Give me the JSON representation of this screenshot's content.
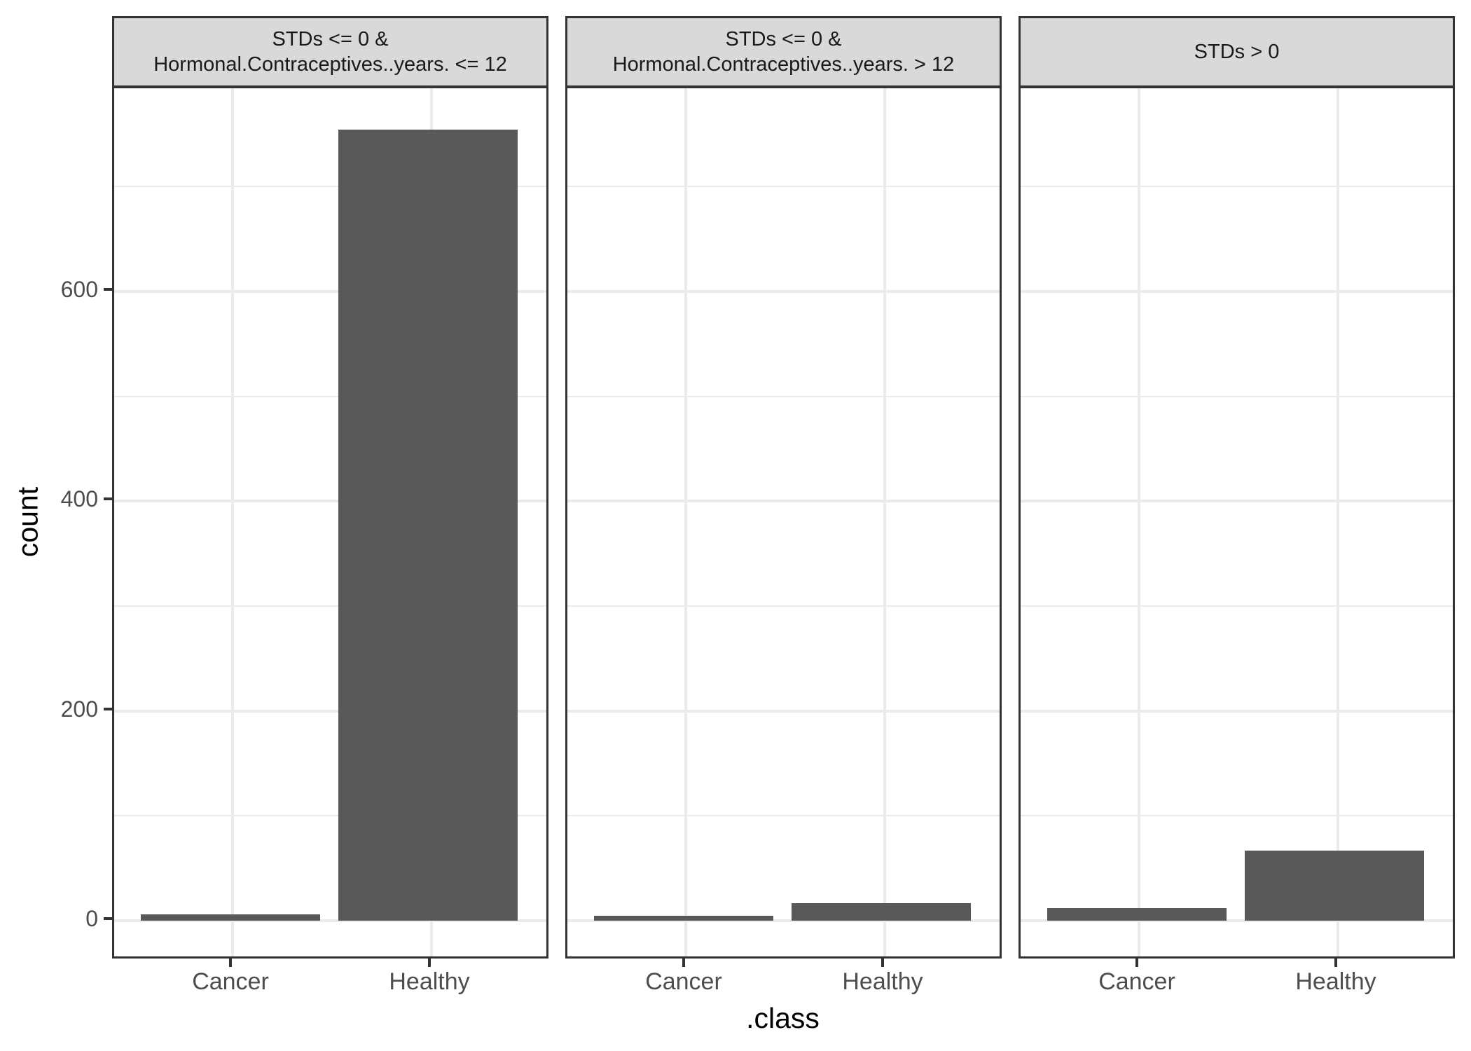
{
  "chart_data": {
    "type": "bar",
    "faceted": true,
    "xlabel": ".class",
    "ylabel": "count",
    "categories": [
      "Cancer",
      "Healthy"
    ],
    "y_ticks": [
      0,
      200,
      400,
      600
    ],
    "ylim": [
      -38,
      791
    ],
    "grid": true,
    "bar_color": "#595959",
    "strip_color": "#d9d9d9",
    "panels": [
      {
        "label": "STDs <= 0 &\nHormonal.Contraceptives..years. <= 12",
        "values": [
          6,
          754
        ]
      },
      {
        "label": "STDs <= 0 &\nHormonal.Contraceptives..years. > 12",
        "values": [
          5,
          17
        ]
      },
      {
        "label": "STDs > 0",
        "values": [
          12,
          67
        ]
      }
    ]
  },
  "axis": {
    "x_title": ".class",
    "y_title": "count",
    "y_tick_labels": [
      "0",
      "200",
      "400",
      "600"
    ],
    "x_tick_labels": [
      "Cancer",
      "Healthy"
    ]
  }
}
